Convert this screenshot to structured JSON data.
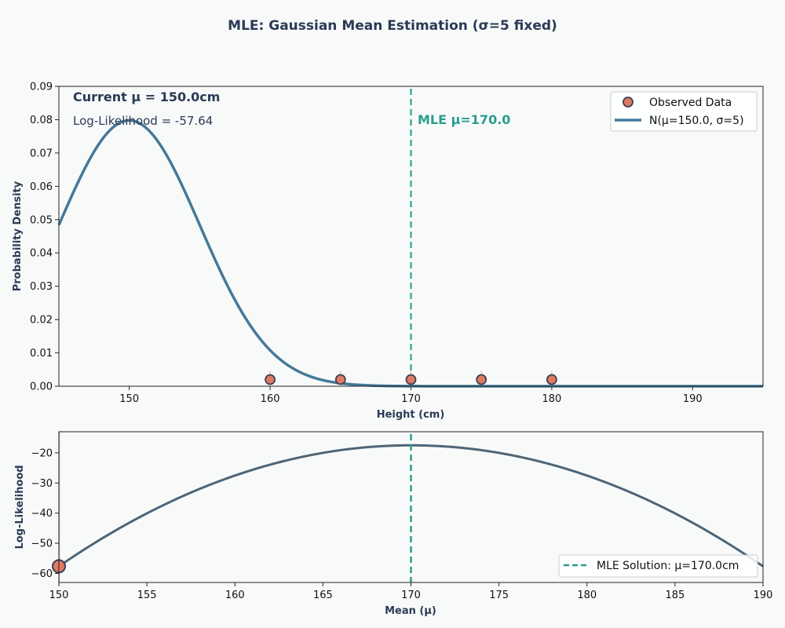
{
  "title": "MLE: Gaussian Mean Estimation (σ=5 fixed)",
  "colors": {
    "curve": "#45799a",
    "loglik": "#4f6575",
    "mle": "#2a9d8f",
    "point_fill": "#e07a5f",
    "point_edge": "#3a3f5c",
    "text_dark": "#2b3a55",
    "background": "#f8fafa"
  },
  "chart_data": [
    {
      "type": "line",
      "id": "density",
      "sigma": 5,
      "current_mu": 150.0,
      "mle_mu": 170.0,
      "xlabel": "Height (cm)",
      "ylabel": "Probability Density",
      "xlim": [
        145,
        195
      ],
      "ylim": [
        0,
        0.09
      ],
      "xticks": [
        150,
        160,
        170,
        180,
        190
      ],
      "yticks": [
        0.0,
        0.01,
        0.02,
        0.03,
        0.04,
        0.05,
        0.06,
        0.07,
        0.08,
        0.09
      ],
      "ytick_labels": [
        "0.00",
        "0.01",
        "0.02",
        "0.03",
        "0.04",
        "0.05",
        "0.06",
        "0.07",
        "0.08",
        "0.09"
      ],
      "observed_x": [
        160,
        165,
        170,
        175,
        180
      ],
      "observed_y": 0.002,
      "annotations": {
        "current_mu": "Current μ = 150.0cm",
        "loglik": "Log-Likelihood = -57.64",
        "mle_label": "MLE μ=170.0"
      },
      "legend": {
        "position": "top-right",
        "observed": "Observed Data",
        "curve": "N(μ=150.0, σ=5)"
      }
    },
    {
      "type": "line",
      "id": "loglikelihood",
      "xlabel": "Mean (μ)",
      "ylabel": "Log-Likelihood",
      "xlim": [
        150,
        190
      ],
      "ylim": [
        -63,
        -13
      ],
      "xticks": [
        150,
        155,
        160,
        165,
        170,
        175,
        180,
        185,
        190
      ],
      "yticks": [
        -60,
        -50,
        -40,
        -30,
        -20
      ],
      "current_point": {
        "x": 150.0,
        "y": -57.64
      },
      "mle_x": 170.0,
      "legend": {
        "position": "bottom-right",
        "mle": "MLE Solution: μ=170.0cm"
      }
    }
  ]
}
